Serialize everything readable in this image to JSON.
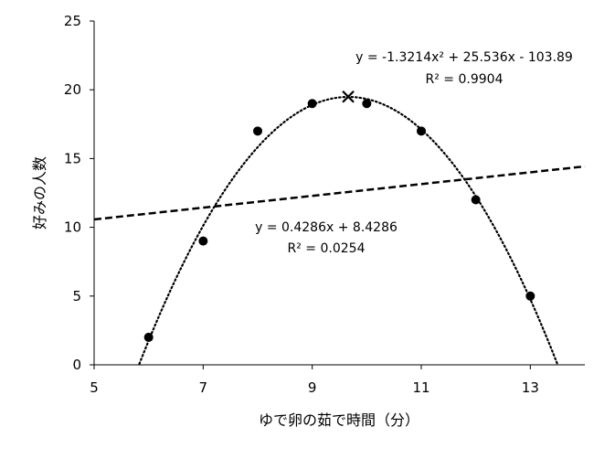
{
  "chart_data": {
    "type": "scatter",
    "title": "",
    "xlabel": "ゆで卵の茹で時間（分）",
    "ylabel": "好みの人数",
    "xlim": [
      5,
      14
    ],
    "ylim": [
      0,
      25
    ],
    "x_ticks": [
      5,
      7,
      9,
      11,
      13
    ],
    "y_ticks": [
      0,
      5,
      10,
      15,
      20,
      25
    ],
    "grid": false,
    "legend": "none",
    "points": [
      {
        "x": 6,
        "y": 2
      },
      {
        "x": 7,
        "y": 9
      },
      {
        "x": 8,
        "y": 17
      },
      {
        "x": 9,
        "y": 19
      },
      {
        "x": 10,
        "y": 19
      },
      {
        "x": 11,
        "y": 17
      },
      {
        "x": 12,
        "y": 12
      },
      {
        "x": 13,
        "y": 5
      }
    ],
    "peak_marker": {
      "x": 9.66,
      "y": 19.5
    },
    "trendlines": [
      {
        "kind": "polynomial",
        "coefficients": [
          -103.89,
          25.536,
          -1.3214
        ],
        "equation": "y = -1.3214x² + 25.536x - 103.89",
        "r_squared": "R² = 0.9904"
      },
      {
        "kind": "linear",
        "coefficients": [
          8.4286,
          0.4286
        ],
        "equation": "y = 0.4286x + 8.4286",
        "r_squared": "R² = 0.0254"
      }
    ],
    "colors": {
      "marker": "#000000",
      "line": "#000000"
    }
  }
}
